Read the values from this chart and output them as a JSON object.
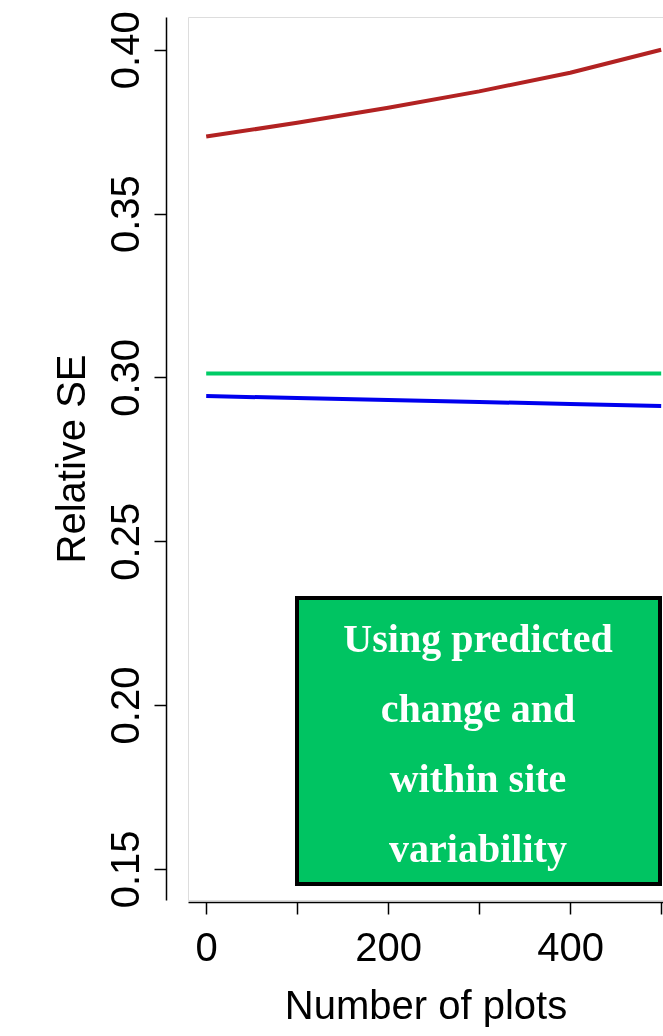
{
  "chart_data": {
    "type": "line",
    "xlabel": "Number of plots",
    "ylabel": "Relative SE",
    "x": [
      0,
      100,
      200,
      300,
      400,
      500
    ],
    "series": [
      {
        "color": "#b22222",
        "values": [
          0.3735,
          0.3777,
          0.3823,
          0.3873,
          0.393,
          0.4
        ]
      },
      {
        "color": "#00cc66",
        "values": [
          0.3012,
          0.3012,
          0.3012,
          0.3012,
          0.3012,
          0.3012
        ]
      },
      {
        "color": "#0000ee",
        "values": [
          0.2943,
          0.2937,
          0.2931,
          0.2925,
          0.2919,
          0.2913
        ]
      }
    ],
    "xlim": [
      -20,
      502
    ],
    "ylim": [
      0.1405,
      0.41
    ],
    "xticks": [
      0,
      {
        "value": 100,
        "label": null
      },
      200,
      {
        "value": 300,
        "label": null
      },
      400,
      {
        "value": 500,
        "label": null
      }
    ],
    "yticks": [
      {
        "value": 0.15,
        "label": "0.15"
      },
      {
        "value": 0.2,
        "label": "0.20"
      },
      {
        "value": 0.25,
        "label": "0.25"
      },
      {
        "value": 0.3,
        "label": "0.30"
      },
      {
        "value": 0.35,
        "label": "0.35"
      },
      {
        "value": 0.4,
        "label": "0.40"
      }
    ],
    "annotations": [
      "Using predicted\nchange and\nwithin site\nvariability"
    ],
    "grid": false,
    "marker": "none",
    "line_style": "solid"
  }
}
